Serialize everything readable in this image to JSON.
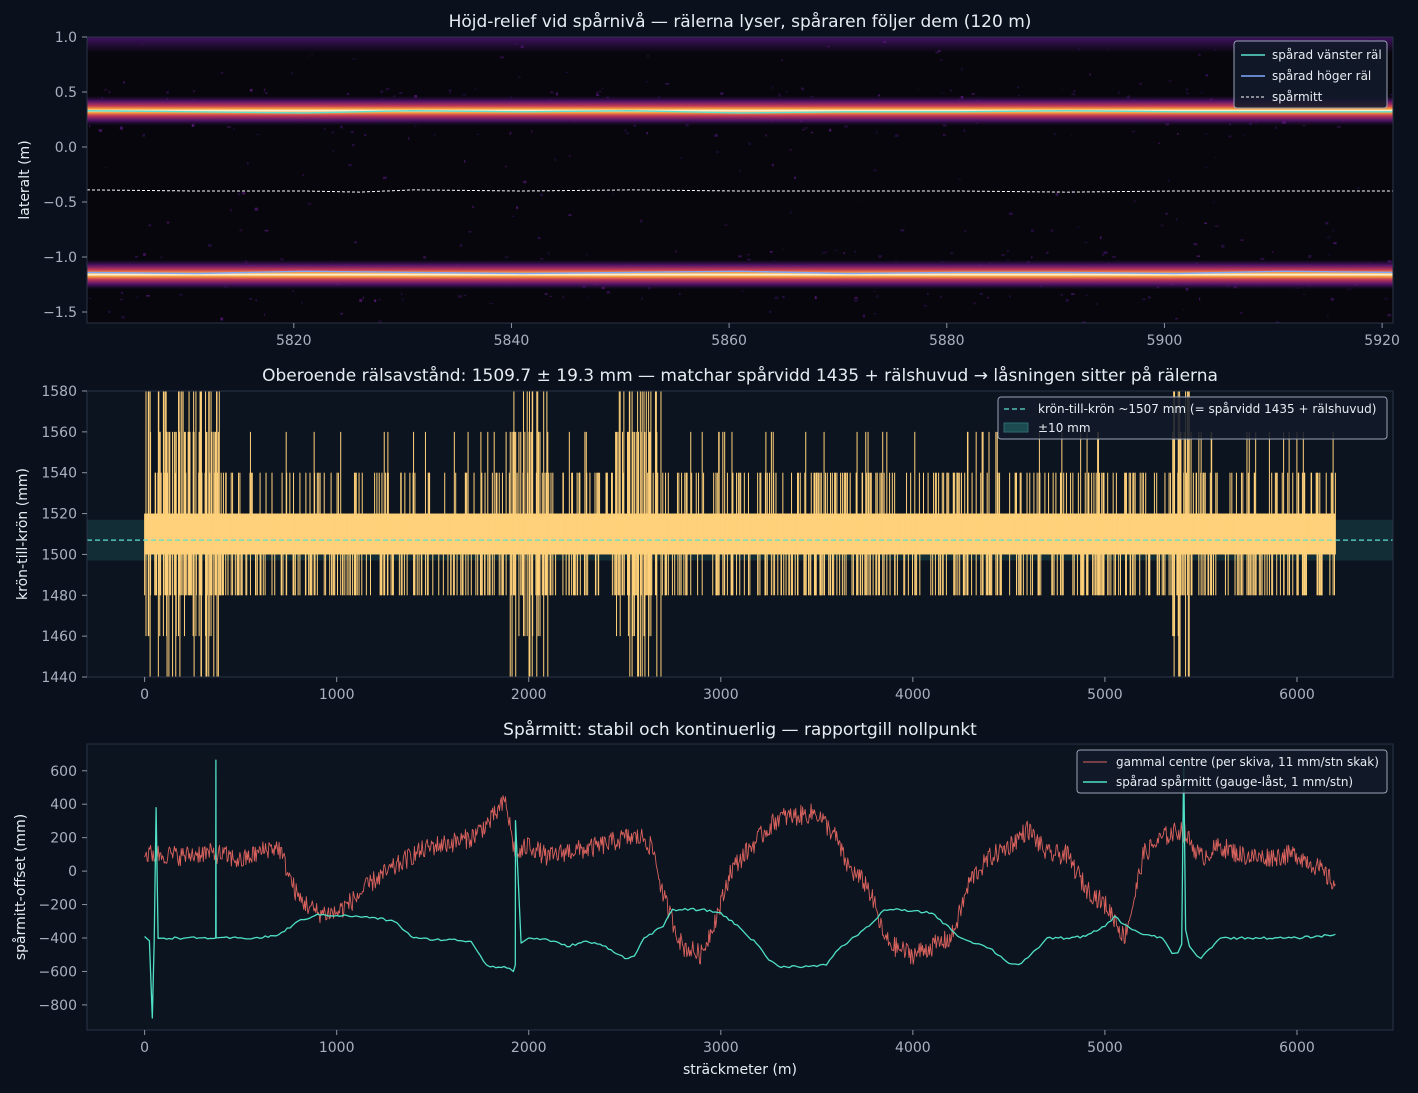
{
  "colors": {
    "background": "#0b111c",
    "axes_bg": "#0c1420",
    "frame": "#2a3446",
    "text": "#e8ecf2",
    "tick_text": "#a9b2c2",
    "rail_left": "#5ee0cf",
    "rail_right": "#7fa8ff",
    "centre": "#ffffff",
    "gauge": "#ffd17a",
    "gauge_ref": "#5ee0cf",
    "old_centre": "#d9625d",
    "tracked_centre": "#4fe0c5"
  },
  "chart_data": [
    {
      "type": "heatmap",
      "title": "Höjd-relief vid spårnivå — rälerna lyser, spåraren följer dem (120 m)",
      "xlabel": "",
      "ylabel": "lateralt (m)",
      "xlim": [
        5801,
        5921
      ],
      "ylim": [
        -1.6,
        1.0
      ],
      "xticks": [
        5820,
        5840,
        5860,
        5880,
        5900,
        5920
      ],
      "yticks": [
        1.0,
        0.5,
        0.0,
        -0.5,
        -1.0,
        -1.5
      ],
      "ytick_labels": [
        "1.0",
        "0.5",
        "0.0",
        "−0.5",
        "−1.0",
        "−1.5"
      ],
      "bright_bands_m": [
        0.33,
        -1.16
      ],
      "legend_position": "upper-right",
      "series": [
        {
          "name": "spårad vänster räl",
          "style": "solid",
          "x": [
            5801,
            5811,
            5821,
            5831,
            5841,
            5851,
            5861,
            5871,
            5881,
            5891,
            5901,
            5911,
            5921
          ],
          "values": [
            0.33,
            0.32,
            0.31,
            0.33,
            0.32,
            0.33,
            0.31,
            0.32,
            0.32,
            0.33,
            0.32,
            0.32,
            0.32
          ]
        },
        {
          "name": "spårad höger räl",
          "style": "solid",
          "x": [
            5801,
            5811,
            5821,
            5831,
            5841,
            5851,
            5861,
            5871,
            5881,
            5891,
            5901,
            5911,
            5921
          ],
          "values": [
            -1.14,
            -1.15,
            -1.13,
            -1.14,
            -1.15,
            -1.14,
            -1.13,
            -1.15,
            -1.14,
            -1.14,
            -1.15,
            -1.13,
            -1.14
          ]
        },
        {
          "name": "spårmitt",
          "style": "dashed",
          "x": [
            5801,
            5811,
            5821,
            5826,
            5831,
            5841,
            5851,
            5861,
            5871,
            5881,
            5891,
            5901,
            5911,
            5921
          ],
          "values": [
            -0.39,
            -0.4,
            -0.4,
            -0.41,
            -0.39,
            -0.4,
            -0.39,
            -0.4,
            -0.4,
            -0.4,
            -0.41,
            -0.4,
            -0.4,
            -0.4
          ]
        }
      ]
    },
    {
      "type": "line",
      "title": "Oberoende rälsavstånd: 1509.7 ± 19.3 mm — matchar spårvidd 1435 + rälshuvud → låsningen sitter på rälerna",
      "xlabel": "",
      "ylabel": "krön-till-krön (mm)",
      "xlim": [
        -300,
        6500
      ],
      "ylim": [
        1440,
        1580
      ],
      "xticks": [
        0,
        1000,
        2000,
        3000,
        4000,
        5000,
        6000
      ],
      "yticks": [
        1580,
        1560,
        1540,
        1520,
        1500,
        1480,
        1460,
        1440
      ],
      "legend_position": "upper-right",
      "series": [
        {
          "name": "krön-till-krön ~1507 mm (= spårvidd 1435 + rälshuvud)",
          "style": "dashed-reference",
          "value": 1507
        },
        {
          "name": "±10 mm",
          "style": "band",
          "low": 1497,
          "high": 1517
        },
        {
          "name": "",
          "style": "dense-signal",
          "x_range": [
            0,
            6200
          ],
          "typical_levels": [
            1480,
            1500,
            1520,
            1540,
            1560
          ],
          "mean": 1509.7,
          "std": 19.3
        }
      ]
    },
    {
      "type": "line",
      "title": "Spårmitt: stabil och kontinuerlig — rapportgill nollpunkt",
      "xlabel": "sträckmeter (m)",
      "ylabel": "spårmitt-offset (mm)",
      "xlim": [
        -300,
        6500
      ],
      "ylim": [
        -950,
        760
      ],
      "xticks": [
        0,
        1000,
        2000,
        3000,
        4000,
        5000,
        6000
      ],
      "yticks": [
        600,
        400,
        200,
        0,
        -200,
        -400,
        -600,
        -800
      ],
      "ytick_labels": [
        "600",
        "400",
        "200",
        "0",
        "−200",
        "−400",
        "−600",
        "−800"
      ],
      "legend_position": "upper-right",
      "series": [
        {
          "name": "gammal centre (per skiva, 11 mm/stn skak)",
          "x": [
            0,
            30,
            100,
            200,
            300,
            400,
            500,
            650,
            700,
            760,
            800,
            900,
            1000,
            1100,
            1200,
            1300,
            1400,
            1500,
            1600,
            1700,
            1800,
            1880,
            1920,
            1950,
            2000,
            2100,
            2200,
            2300,
            2400,
            2500,
            2600,
            2650,
            2700,
            2750,
            2800,
            2900,
            3000,
            3050,
            3100,
            3200,
            3300,
            3400,
            3500,
            3600,
            3650,
            3700,
            3760,
            3800,
            3850,
            3900,
            4000,
            4100,
            4200,
            4250,
            4300,
            4400,
            4500,
            4600,
            4700,
            4800,
            4900,
            5000,
            5050,
            5100,
            5150,
            5200,
            5300,
            5400,
            5500,
            5600,
            5700,
            5800,
            5900,
            6000,
            6100,
            6200
          ],
          "values": [
            100,
            100,
            100,
            90,
            110,
            100,
            60,
            140,
            140,
            -50,
            -160,
            -250,
            -250,
            -160,
            -50,
            20,
            100,
            150,
            170,
            200,
            300,
            420,
            150,
            100,
            160,
            80,
            120,
            130,
            160,
            200,
            200,
            120,
            -150,
            -300,
            -450,
            -500,
            -200,
            0,
            70,
            200,
            320,
            330,
            350,
            200,
            50,
            -20,
            -80,
            -200,
            -400,
            -450,
            -500,
            -450,
            -400,
            -230,
            -50,
            80,
            150,
            250,
            100,
            100,
            -100,
            -200,
            -280,
            -400,
            -180,
            100,
            200,
            250,
            80,
            150,
            100,
            80,
            90,
            100,
            30,
            -80
          ]
        },
        {
          "name": "spårad spårmitt (gauge-låst, 1 mm/stn)",
          "x": [
            0,
            25,
            40,
            50,
            60,
            70,
            100,
            200,
            300,
            370,
            371,
            372,
            400,
            500,
            600,
            700,
            800,
            900,
            1000,
            1100,
            1200,
            1300,
            1400,
            1500,
            1600,
            1700,
            1780,
            1800,
            1900,
            1920,
            1930,
            1931,
            1960,
            2000,
            2100,
            2200,
            2300,
            2400,
            2500,
            2550,
            2600,
            2700,
            2750,
            2800,
            2900,
            3000,
            3100,
            3200,
            3250,
            3300,
            3400,
            3500,
            3550,
            3600,
            3700,
            3800,
            3850,
            3900,
            4000,
            4100,
            4200,
            4250,
            4300,
            4400,
            4500,
            4550,
            4600,
            4700,
            4800,
            4900,
            5000,
            5050,
            5100,
            5200,
            5300,
            5350,
            5380,
            5400,
            5410,
            5420,
            5440,
            5480,
            5500,
            5600,
            5700,
            5800,
            5900,
            6000,
            6100,
            6200
          ],
          "values": [
            -390,
            -420,
            -880,
            -420,
            380,
            -400,
            -400,
            -400,
            -400,
            -400,
            660,
            -400,
            -400,
            -400,
            -400,
            -380,
            -300,
            -260,
            -265,
            -270,
            -280,
            -300,
            -400,
            -410,
            -410,
            -420,
            -560,
            -570,
            -580,
            -600,
            -560,
            300,
            -430,
            -400,
            -410,
            -450,
            -420,
            -450,
            -520,
            -510,
            -400,
            -330,
            -230,
            -230,
            -230,
            -250,
            -340,
            -450,
            -530,
            -570,
            -570,
            -570,
            -560,
            -480,
            -390,
            -300,
            -230,
            -230,
            -240,
            -250,
            -350,
            -400,
            -420,
            -460,
            -550,
            -560,
            -520,
            -400,
            -400,
            -390,
            -330,
            -270,
            -320,
            -380,
            -400,
            -490,
            -490,
            -440,
            660,
            -350,
            -450,
            -510,
            -520,
            -400,
            -400,
            -400,
            -400,
            -400,
            -390,
            -380
          ]
        }
      ]
    }
  ]
}
